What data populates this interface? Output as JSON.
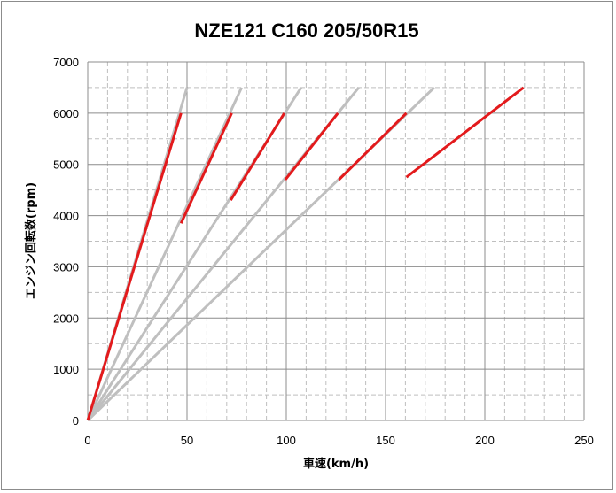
{
  "chart_data": {
    "type": "line",
    "title": "NZE121 C160 205/50R15",
    "xlabel": "車速(km/h)",
    "ylabel": "エンジン回転数(rpm)",
    "xlim": [
      0,
      250
    ],
    "ylim": [
      0,
      7000
    ],
    "x_ticks": [
      "0",
      "50",
      "100",
      "150",
      "200",
      "250"
    ],
    "y_ticks": [
      "0",
      "1000",
      "2000",
      "3000",
      "4000",
      "5000",
      "6000",
      "7000"
    ],
    "grid": {
      "horizontal_major": true,
      "horizontal_minor_dashed": true,
      "vertical_major": true,
      "vertical_minor_dashed": true
    },
    "legend": "none",
    "colors": {
      "gear_line": "#bfbfbf",
      "shift_segment": "#e31a1c",
      "grid_major": "#8c8c8c",
      "grid_minor": "#bfbfbf"
    },
    "gear_lines": [
      {
        "x": [
          0,
          50.0
        ],
        "y": [
          0,
          6500
        ]
      },
      {
        "x": [
          0,
          77.5
        ],
        "y": [
          0,
          6500
        ]
      },
      {
        "x": [
          0,
          107.5
        ],
        "y": [
          0,
          6500
        ]
      },
      {
        "x": [
          0,
          136.5
        ],
        "y": [
          0,
          6500
        ]
      },
      {
        "x": [
          0,
          174.5
        ],
        "y": [
          0,
          6500
        ]
      }
    ],
    "shift_segments": [
      {
        "x": [
          0,
          47.0
        ],
        "y": [
          0,
          6000
        ]
      },
      {
        "x": [
          47.0,
          72.5
        ],
        "y": [
          3850,
          6000
        ]
      },
      {
        "x": [
          72.0,
          99.0
        ],
        "y": [
          4300,
          6000
        ]
      },
      {
        "x": [
          99.5,
          126.0
        ],
        "y": [
          4700,
          6000
        ]
      },
      {
        "x": [
          126.5,
          160.5
        ],
        "y": [
          4700,
          6000
        ]
      },
      {
        "x": [
          160.5,
          219.5
        ],
        "y": [
          4750,
          6500
        ]
      }
    ]
  }
}
